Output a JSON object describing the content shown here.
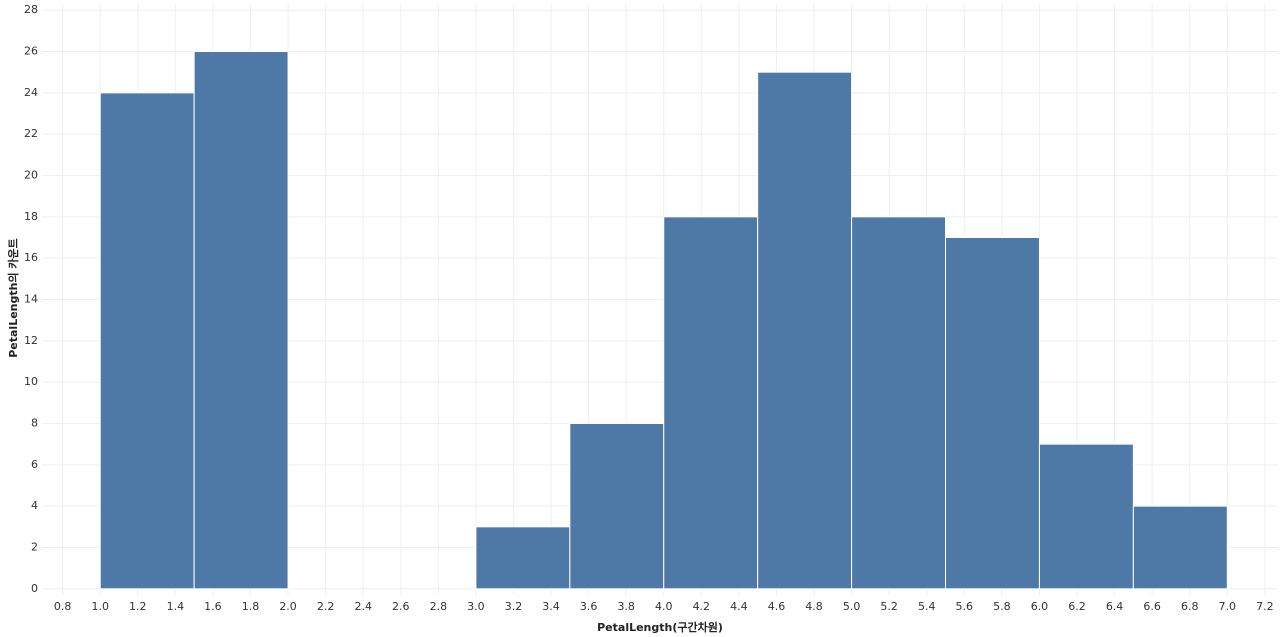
{
  "chart_data": {
    "type": "histogram",
    "x_label": "PetalLength(구간차원)",
    "y_label": "PetalLength의 카운트",
    "bins": [
      1.0,
      1.5,
      2.0,
      2.5,
      3.0,
      3.5,
      4.0,
      4.5,
      5.0,
      5.5,
      6.0,
      6.5,
      7.0
    ],
    "counts": [
      24,
      26,
      0,
      0,
      3,
      8,
      18,
      25,
      18,
      17,
      7,
      4
    ],
    "color": "#4e79a7",
    "xlim": [
      0.69,
      7.27
    ],
    "ylim": [
      -0.3,
      28.3
    ],
    "xticks": [
      0.8,
      {
        "value": 1.0,
        "label": "1.0"
      },
      1.2,
      1.4,
      1.6,
      1.8,
      {
        "value": 2.0,
        "label": "2.0"
      },
      2.2,
      2.4,
      2.6,
      2.8,
      {
        "value": 3.0,
        "label": "3.0"
      },
      3.2,
      3.4,
      3.6,
      3.8,
      {
        "value": 4.0,
        "label": "4.0"
      },
      4.2,
      4.4,
      4.6,
      4.8,
      {
        "value": 5.0,
        "label": "5.0"
      },
      5.2,
      5.4,
      5.6,
      5.8,
      {
        "value": 6.0,
        "label": "6.0"
      },
      6.2,
      6.4,
      6.6,
      6.8,
      {
        "value": 7.0,
        "label": "7.0"
      },
      7.2
    ],
    "yticks": [
      0,
      2,
      4,
      6,
      8,
      10,
      12,
      14,
      16,
      18,
      20,
      22,
      24,
      26,
      28
    ],
    "grid": true
  }
}
